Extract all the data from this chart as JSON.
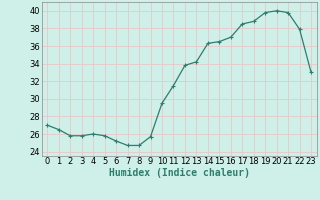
{
  "x": [
    0,
    1,
    2,
    3,
    4,
    5,
    6,
    7,
    8,
    9,
    10,
    11,
    12,
    13,
    14,
    15,
    16,
    17,
    18,
    19,
    20,
    21,
    22,
    23
  ],
  "y": [
    27,
    26.5,
    25.8,
    25.8,
    26,
    25.8,
    25.2,
    24.7,
    24.7,
    25.7,
    29.5,
    31.5,
    33.8,
    34.2,
    36.3,
    36.5,
    37,
    38.5,
    38.8,
    39.8,
    40,
    39.8,
    37.9,
    33
  ],
  "xlabel": "Humidex (Indice chaleur)",
  "xlim": [
    -0.5,
    23.5
  ],
  "ylim": [
    23.5,
    41
  ],
  "yticks": [
    24,
    26,
    28,
    30,
    32,
    34,
    36,
    38,
    40
  ],
  "xticks": [
    0,
    1,
    2,
    3,
    4,
    5,
    6,
    7,
    8,
    9,
    10,
    11,
    12,
    13,
    14,
    15,
    16,
    17,
    18,
    19,
    20,
    21,
    22,
    23
  ],
  "line_color": "#2e7d6e",
  "marker_size": 2.5,
  "bg_color": "#cef0e8",
  "grid_color": "#e8c8c8",
  "grid_linewidth": 0.6,
  "tick_fontsize": 6,
  "label_fontsize": 7
}
